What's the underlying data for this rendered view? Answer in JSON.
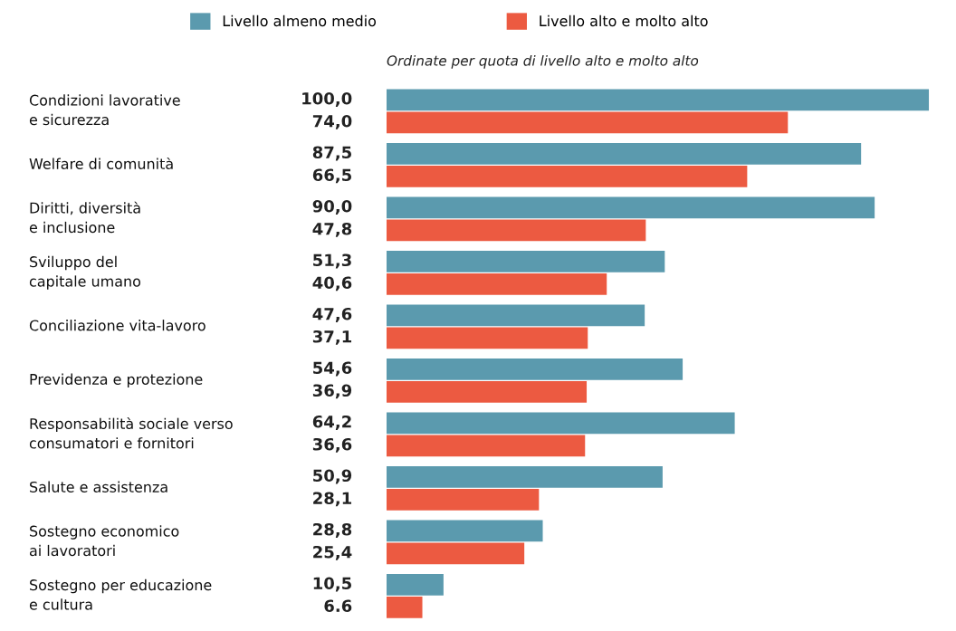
{
  "chart_data": {
    "type": "bar",
    "orientation": "horizontal",
    "subtitle": "Ordinate per quota di livello alto e molto alto",
    "legend": "top",
    "categories": [
      "Condizioni lavorative\ne sicurezza",
      "Welfare di comunità",
      "Diritti, diversità\ne inclusione",
      "Sviluppo del\ncapitale umano",
      "Conciliazione vita-lavoro",
      "Previdenza e protezione",
      "Responsabilità sociale verso\nconsumatori e fornitori",
      "Salute e assistenza",
      "Sostegno economico\nai lavoratori",
      "Sostegno per educazione\ne cultura"
    ],
    "series": [
      {
        "name": "Livello almeno medio",
        "color": "#5b9aae",
        "values": [
          100.0,
          87.5,
          90.0,
          51.3,
          47.6,
          54.6,
          64.2,
          50.9,
          28.8,
          10.5
        ],
        "value_labels": [
          "100,0",
          "87,5",
          "90,0",
          "51,3",
          "47,6",
          "54,6",
          "64,2",
          "50,9",
          "28,8",
          "10,5"
        ]
      },
      {
        "name": "Livello alto e molto alto",
        "color": "#ec5a41",
        "values": [
          74.0,
          66.5,
          47.8,
          40.6,
          37.1,
          36.9,
          36.6,
          28.1,
          25.4,
          6.6
        ],
        "value_labels": [
          "74,0",
          "66,5",
          "47,8",
          "40,6",
          "37,1",
          "36,9",
          "36,6",
          "28,1",
          "25,4",
          "6.6"
        ]
      }
    ]
  }
}
